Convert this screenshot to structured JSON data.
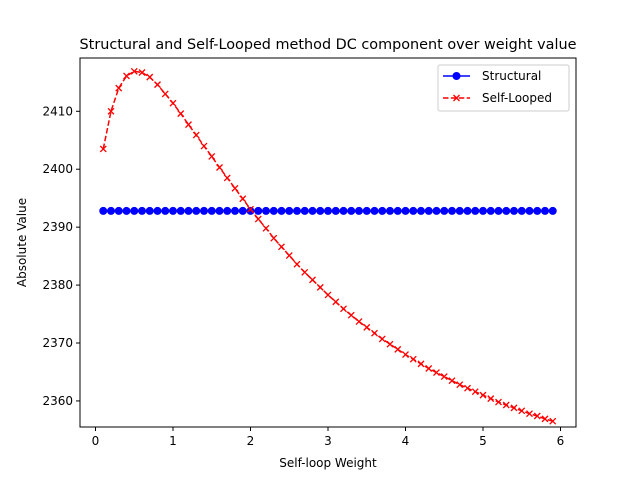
{
  "chart_data": {
    "type": "line",
    "title": "Structural and Self-Looped method DC component over weight value",
    "xlabel": "Self-loop Weight",
    "ylabel": "Absolute Value",
    "xlim": [
      -0.2,
      6.2
    ],
    "ylim": [
      2355.5,
      2419.2
    ],
    "x_ticks": [
      0,
      1,
      2,
      3,
      4,
      5,
      6
    ],
    "y_ticks": [
      2360,
      2370,
      2380,
      2390,
      2400,
      2410
    ],
    "grid": false,
    "legend_position": "top-right",
    "x": [
      0.1,
      0.2,
      0.3,
      0.4,
      0.5,
      0.6,
      0.7,
      0.8,
      0.9,
      1.0,
      1.1,
      1.2,
      1.3,
      1.4,
      1.5,
      1.6,
      1.7,
      1.8,
      1.9,
      2.0,
      2.1,
      2.2,
      2.3,
      2.4,
      2.5,
      2.6,
      2.7,
      2.8,
      2.9,
      3.0,
      3.1,
      3.2,
      3.3,
      3.4,
      3.5,
      3.6,
      3.7,
      3.8,
      3.9,
      4.0,
      4.1,
      4.2,
      4.3,
      4.4,
      4.5,
      4.6,
      4.7,
      4.8,
      4.9,
      5.0,
      5.1,
      5.2,
      5.3,
      5.4,
      5.5,
      5.6,
      5.7,
      5.8,
      5.9
    ],
    "series": [
      {
        "name": "Structural",
        "color": "#0000ff",
        "line_style": "solid",
        "marker": "circle",
        "values": [
          2392.8,
          2392.8,
          2392.8,
          2392.8,
          2392.8,
          2392.8,
          2392.8,
          2392.8,
          2392.8,
          2392.8,
          2392.8,
          2392.8,
          2392.8,
          2392.8,
          2392.8,
          2392.8,
          2392.8,
          2392.8,
          2392.8,
          2392.8,
          2392.8,
          2392.8,
          2392.8,
          2392.8,
          2392.8,
          2392.8,
          2392.8,
          2392.8,
          2392.8,
          2392.8,
          2392.8,
          2392.8,
          2392.8,
          2392.8,
          2392.8,
          2392.8,
          2392.8,
          2392.8,
          2392.8,
          2392.8,
          2392.8,
          2392.8,
          2392.8,
          2392.8,
          2392.8,
          2392.8,
          2392.8,
          2392.8,
          2392.8,
          2392.8,
          2392.8,
          2392.8,
          2392.8,
          2392.8,
          2392.8,
          2392.8,
          2392.8,
          2392.8,
          2392.8
        ]
      },
      {
        "name": "Self-Looped",
        "color": "#ff0000",
        "line_style": "dashed",
        "marker": "x",
        "values": [
          2403.5,
          2410.0,
          2414.0,
          2416.1,
          2416.9,
          2416.7,
          2415.9,
          2414.6,
          2413.0,
          2411.4,
          2409.6,
          2407.7,
          2405.9,
          2404.0,
          2402.2,
          2400.3,
          2398.5,
          2396.7,
          2394.9,
          2393.1,
          2391.4,
          2389.8,
          2388.1,
          2386.6,
          2385.1,
          2383.6,
          2382.2,
          2380.9,
          2379.6,
          2378.3,
          2377.1,
          2375.9,
          2374.8,
          2373.7,
          2372.7,
          2371.7,
          2370.7,
          2369.8,
          2368.9,
          2368.0,
          2367.2,
          2366.4,
          2365.6,
          2364.9,
          2364.2,
          2363.5,
          2362.8,
          2362.2,
          2361.6,
          2361.0,
          2360.4,
          2359.8,
          2359.3,
          2358.8,
          2358.3,
          2357.8,
          2357.4,
          2356.9,
          2356.5
        ]
      }
    ]
  }
}
